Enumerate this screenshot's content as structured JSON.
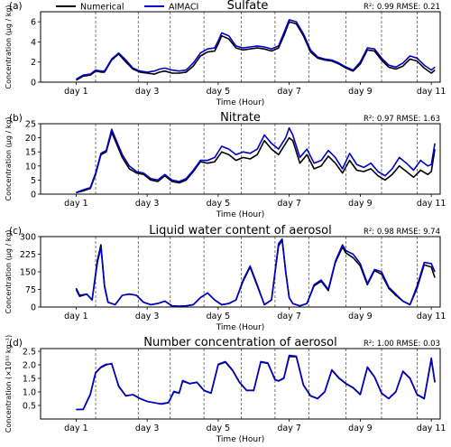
{
  "legend": {
    "items": [
      {
        "label": "Numerical",
        "color": "#000000"
      },
      {
        "label": "AIMACI",
        "color": "#0000cc"
      }
    ],
    "placement": "top-left"
  },
  "colors": {
    "numerical": "#000000",
    "aimaci": "#0000cc",
    "divider": "#555555"
  },
  "chart_data": [
    {
      "type": "line",
      "panel_label": "(a)",
      "title": "Sulfate",
      "ylabel": "Concentration (μg / kg)",
      "xlabel": "Time (Hour)",
      "stats": "R²: 0.99  RMSE: 0.21",
      "xlim": [
        0,
        11.25
      ],
      "ylim": [
        0,
        7
      ],
      "yticks": [
        0,
        2,
        4,
        6
      ],
      "ytick_labels": [
        "0",
        "2",
        "4",
        "6"
      ],
      "xticks": [
        1,
        3,
        5,
        7,
        9,
        11
      ],
      "xtick_labels": [
        "day 1",
        "day 3",
        "day 5",
        "day 7",
        "day 9",
        "day 11"
      ],
      "dividers": [
        1.55,
        2.75,
        3.65,
        4.6,
        5.65,
        6.6,
        7.55,
        8.6,
        9.6,
        10.6
      ],
      "x": [
        1.0,
        1.2,
        1.4,
        1.55,
        1.7,
        1.8,
        2.0,
        2.2,
        2.4,
        2.6,
        2.8,
        3.0,
        3.2,
        3.35,
        3.5,
        3.7,
        3.9,
        4.1,
        4.3,
        4.5,
        4.7,
        4.9,
        5.0,
        5.1,
        5.3,
        5.5,
        5.7,
        5.9,
        6.1,
        6.3,
        6.5,
        6.7,
        6.85,
        7.0,
        7.2,
        7.4,
        7.6,
        7.8,
        8.0,
        8.2,
        8.4,
        8.6,
        8.8,
        9.0,
        9.2,
        9.4,
        9.6,
        9.8,
        10.0,
        10.2,
        10.4,
        10.6,
        10.8,
        11.0,
        11.1
      ],
      "series": [
        {
          "name": "Numerical",
          "values": [
            0.2,
            0.6,
            0.7,
            1.1,
            1.0,
            1.0,
            2.2,
            2.8,
            2.0,
            1.3,
            1.0,
            0.9,
            0.8,
            1.0,
            1.1,
            0.9,
            0.9,
            1.0,
            1.6,
            2.6,
            3.0,
            3.1,
            3.8,
            4.6,
            4.3,
            3.4,
            3.2,
            3.3,
            3.4,
            3.3,
            3.1,
            3.4,
            4.6,
            6.0,
            5.8,
            4.6,
            3.0,
            2.4,
            2.2,
            2.1,
            1.8,
            1.4,
            1.1,
            1.8,
            3.2,
            3.1,
            2.2,
            1.5,
            1.3,
            1.6,
            2.3,
            2.1,
            1.4,
            0.9,
            1.2
          ]
        },
        {
          "name": "AIMACI",
          "values": [
            0.3,
            0.7,
            0.8,
            1.2,
            1.1,
            1.1,
            2.3,
            2.9,
            2.2,
            1.4,
            1.1,
            1.0,
            1.1,
            1.3,
            1.4,
            1.2,
            1.1,
            1.2,
            1.9,
            2.9,
            3.3,
            3.4,
            4.1,
            4.9,
            4.6,
            3.6,
            3.4,
            3.5,
            3.6,
            3.5,
            3.3,
            3.6,
            4.9,
            6.2,
            6.0,
            4.8,
            3.2,
            2.5,
            2.3,
            2.2,
            1.9,
            1.5,
            1.2,
            2.0,
            3.4,
            3.3,
            2.4,
            1.7,
            1.5,
            1.9,
            2.6,
            2.4,
            1.7,
            1.2,
            1.5
          ]
        }
      ]
    },
    {
      "type": "line",
      "panel_label": "(b)",
      "title": "Nitrate",
      "ylabel": "Concentration (μg / kg)",
      "xlabel": "Time (Hour)",
      "stats": "R²: 0.97  RMSE: 1.63",
      "xlim": [
        0,
        11.25
      ],
      "ylim": [
        0,
        25
      ],
      "yticks": [
        0,
        5,
        10,
        15,
        20,
        25
      ],
      "ytick_labels": [
        "0",
        "5",
        "10",
        "15",
        "20",
        "25"
      ],
      "xticks": [
        1,
        3,
        5,
        7,
        9,
        11
      ],
      "xtick_labels": [
        "day 1",
        "day 3",
        "day 5",
        "day 7",
        "day 9",
        "day 11"
      ],
      "dividers": [
        1.55,
        2.75,
        3.65,
        4.6,
        5.65,
        6.6,
        7.55,
        8.6,
        9.6,
        10.6
      ],
      "x": [
        1.0,
        1.2,
        1.4,
        1.55,
        1.7,
        1.85,
        2.0,
        2.1,
        2.3,
        2.5,
        2.7,
        2.9,
        3.1,
        3.3,
        3.5,
        3.7,
        3.9,
        4.1,
        4.3,
        4.5,
        4.7,
        4.9,
        5.1,
        5.3,
        5.5,
        5.7,
        5.9,
        6.1,
        6.3,
        6.5,
        6.7,
        6.9,
        7.0,
        7.1,
        7.3,
        7.5,
        7.7,
        7.9,
        8.1,
        8.3,
        8.5,
        8.7,
        8.9,
        9.1,
        9.3,
        9.5,
        9.7,
        9.9,
        10.1,
        10.3,
        10.5,
        10.7,
        10.9,
        11.0,
        11.1
      ],
      "series": [
        {
          "name": "Numerical",
          "values": [
            0.5,
            1.2,
            2.0,
            7.0,
            14.0,
            15.0,
            22.0,
            19.0,
            13.0,
            9.0,
            7.5,
            7.0,
            5.0,
            4.5,
            6.5,
            4.5,
            4.0,
            5.0,
            8.0,
            11.5,
            11.0,
            11.5,
            15.0,
            14.0,
            12.0,
            13.0,
            12.5,
            14.0,
            19.0,
            16.0,
            14.0,
            18.0,
            20.0,
            19.0,
            11.0,
            14.0,
            9.0,
            10.0,
            13.5,
            11.0,
            7.5,
            12.0,
            8.5,
            8.0,
            9.0,
            6.5,
            5.0,
            7.0,
            10.0,
            8.0,
            6.0,
            8.5,
            7.0,
            8.0,
            16.0
          ]
        },
        {
          "name": "AIMACI",
          "values": [
            0.6,
            1.5,
            2.3,
            7.5,
            14.5,
            15.5,
            23.0,
            20.0,
            14.0,
            10.0,
            8.0,
            7.5,
            5.5,
            5.0,
            7.0,
            5.0,
            4.5,
            5.5,
            8.5,
            12.0,
            12.0,
            13.0,
            17.0,
            16.0,
            14.0,
            15.0,
            14.5,
            16.0,
            21.0,
            18.0,
            16.0,
            20.0,
            23.5,
            21.0,
            13.0,
            16.0,
            11.0,
            12.0,
            15.5,
            13.0,
            9.0,
            14.5,
            10.5,
            9.5,
            11.0,
            8.0,
            6.5,
            9.0,
            13.0,
            11.0,
            8.5,
            12.0,
            10.0,
            10.5,
            18.0
          ]
        }
      ]
    },
    {
      "type": "line",
      "panel_label": "(c)",
      "title": "Liquid water content of aerosol",
      "ylabel": "Concentration (μg / kg)",
      "xlabel": "Time (Hour)",
      "stats": "R²: 0.98  RMSE: 9.74",
      "xlim": [
        0,
        11.25
      ],
      "ylim": [
        0,
        300
      ],
      "yticks": [
        0,
        75,
        150,
        225,
        300
      ],
      "ytick_labels": [
        "0",
        "75",
        "150",
        "225",
        "300"
      ],
      "xticks": [
        1,
        3,
        5,
        7,
        9,
        11
      ],
      "xtick_labels": [
        "day 1",
        "day 3",
        "day 5",
        "day 7",
        "day 9",
        "day 11"
      ],
      "dividers": [
        1.55,
        2.75,
        3.65,
        4.6,
        5.65,
        6.6,
        7.55,
        8.6,
        9.6,
        10.6
      ],
      "x": [
        1.0,
        1.1,
        1.3,
        1.45,
        1.6,
        1.7,
        1.8,
        1.9,
        2.1,
        2.3,
        2.5,
        2.7,
        2.9,
        3.1,
        3.3,
        3.5,
        3.7,
        3.9,
        4.1,
        4.3,
        4.5,
        4.7,
        4.9,
        5.1,
        5.3,
        5.5,
        5.7,
        5.9,
        6.1,
        6.3,
        6.5,
        6.7,
        6.8,
        6.9,
        7.0,
        7.1,
        7.3,
        7.5,
        7.7,
        7.9,
        8.1,
        8.3,
        8.5,
        8.6,
        8.8,
        9.0,
        9.2,
        9.4,
        9.6,
        9.8,
        10.0,
        10.2,
        10.4,
        10.6,
        10.8,
        11.0,
        11.1
      ],
      "series": [
        {
          "name": "Numerical",
          "values": [
            80,
            50,
            55,
            30,
            200,
            265,
            90,
            20,
            10,
            50,
            55,
            50,
            20,
            10,
            15,
            25,
            5,
            3,
            5,
            10,
            40,
            60,
            30,
            10,
            15,
            30,
            110,
            170,
            90,
            10,
            30,
            260,
            285,
            150,
            40,
            15,
            5,
            15,
            90,
            110,
            70,
            190,
            255,
            230,
            210,
            175,
            95,
            155,
            140,
            80,
            50,
            25,
            10,
            80,
            180,
            170,
            125
          ]
        },
        {
          "name": "AIMACI",
          "values": [
            75,
            45,
            55,
            30,
            190,
            255,
            85,
            20,
            10,
            50,
            55,
            50,
            20,
            10,
            15,
            25,
            5,
            3,
            5,
            10,
            40,
            60,
            30,
            10,
            15,
            30,
            115,
            175,
            95,
            10,
            30,
            270,
            290,
            155,
            40,
            15,
            5,
            15,
            95,
            115,
            75,
            195,
            265,
            240,
            225,
            185,
            100,
            160,
            150,
            85,
            55,
            25,
            10,
            90,
            190,
            185,
            150
          ]
        }
      ]
    },
    {
      "type": "line",
      "panel_label": "(d)",
      "title": "Number concentration of aerosol",
      "ylabel": "Concentration (×10¹⁰ kg⁻¹)",
      "xlabel": "Time (Hour)",
      "stats": "R²: 1.00  RMSE: 0.03",
      "xlim": [
        0,
        11.25
      ],
      "ylim": [
        0,
        2.6
      ],
      "yticks": [
        0.5,
        1.0,
        1.5,
        2.0,
        2.5
      ],
      "ytick_labels": [
        "0.5",
        "1.0",
        "1.5",
        "2.0",
        "2.5"
      ],
      "xticks": [
        1,
        3,
        5,
        7,
        9,
        11
      ],
      "xtick_labels": [
        "day 1",
        "day 3",
        "day 5",
        "day 7",
        "day 9",
        "day 11"
      ],
      "dividers": [
        1.55,
        2.75,
        3.65,
        4.6,
        5.65,
        6.6,
        7.55,
        8.6,
        9.6,
        10.6
      ],
      "x": [
        1.0,
        1.2,
        1.4,
        1.55,
        1.7,
        1.85,
        2.0,
        2.2,
        2.4,
        2.6,
        2.8,
        3.0,
        3.2,
        3.4,
        3.6,
        3.75,
        3.9,
        4.0,
        4.2,
        4.4,
        4.6,
        4.8,
        5.0,
        5.2,
        5.4,
        5.6,
        5.8,
        6.0,
        6.2,
        6.4,
        6.6,
        6.7,
        6.85,
        7.0,
        7.2,
        7.4,
        7.6,
        7.8,
        8.0,
        8.2,
        8.4,
        8.6,
        8.8,
        9.0,
        9.2,
        9.4,
        9.6,
        9.8,
        10.0,
        10.2,
        10.4,
        10.6,
        10.8,
        11.0,
        11.1
      ],
      "series": [
        {
          "name": "Numerical",
          "values": [
            0.35,
            0.35,
            0.9,
            1.7,
            1.9,
            2.0,
            2.05,
            1.2,
            0.85,
            0.9,
            0.75,
            0.65,
            0.6,
            0.55,
            0.6,
            1.0,
            0.95,
            1.4,
            1.3,
            1.35,
            1.05,
            0.95,
            2.0,
            2.1,
            1.8,
            1.35,
            1.05,
            1.05,
            2.1,
            2.05,
            1.45,
            1.4,
            1.5,
            2.3,
            2.3,
            1.25,
            0.85,
            0.75,
            1.0,
            1.8,
            1.5,
            1.3,
            1.15,
            0.9,
            1.9,
            1.55,
            0.95,
            0.75,
            1.0,
            1.75,
            1.5,
            0.9,
            0.75,
            2.2,
            1.35
          ]
        },
        {
          "name": "AIMACI",
          "values": [
            0.35,
            0.36,
            0.92,
            1.72,
            1.92,
            2.02,
            2.03,
            1.22,
            0.86,
            0.9,
            0.76,
            0.65,
            0.6,
            0.56,
            0.61,
            1.02,
            0.96,
            1.42,
            1.31,
            1.36,
            1.06,
            0.96,
            2.02,
            2.12,
            1.82,
            1.36,
            1.06,
            1.06,
            2.12,
            2.07,
            1.46,
            1.41,
            1.52,
            2.35,
            2.32,
            1.26,
            0.86,
            0.76,
            1.01,
            1.82,
            1.52,
            1.31,
            1.16,
            0.91,
            1.92,
            1.56,
            0.96,
            0.76,
            1.01,
            1.77,
            1.51,
            0.91,
            0.76,
            2.25,
            1.36
          ]
        }
      ]
    }
  ]
}
